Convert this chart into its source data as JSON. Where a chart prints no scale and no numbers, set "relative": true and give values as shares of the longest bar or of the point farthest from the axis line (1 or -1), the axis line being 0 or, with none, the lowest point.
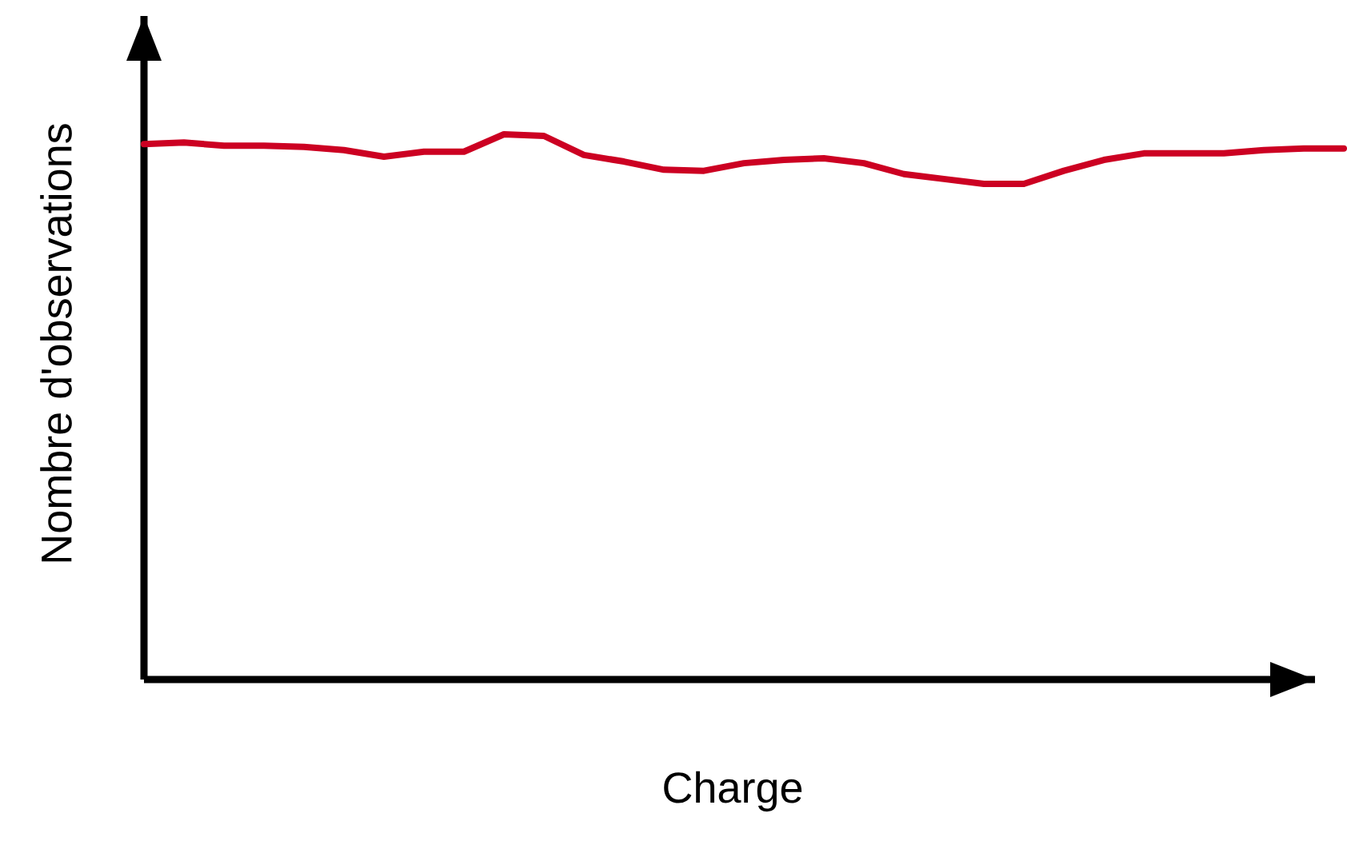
{
  "chart_data": {
    "type": "line",
    "relative": true,
    "xlabel": "Charge",
    "ylabel": "Nombre d'observations",
    "categories": [
      null,
      null,
      null,
      null,
      null,
      null,
      null,
      null,
      null,
      null,
      null,
      null,
      null,
      null,
      null,
      null,
      null,
      null,
      null,
      null,
      null,
      null,
      null,
      null,
      null,
      null,
      null,
      null,
      null,
      null,
      null
    ],
    "series": [
      {
        "color": "#cc0022",
        "values": [
          0.982,
          0.985,
          0.979,
          0.979,
          0.977,
          0.971,
          0.959,
          0.968,
          0.968,
          1,
          0.997,
          0.962,
          0.95,
          0.935,
          0.933,
          0.947,
          0.953,
          0.956,
          0.947,
          0.927,
          0.918,
          0.909,
          0.909,
          0.933,
          0.953,
          0.965,
          0.965,
          0.965,
          0.971,
          0.974,
          0.974
        ]
      }
    ],
    "marker": "none",
    "line_style": "solid"
  }
}
